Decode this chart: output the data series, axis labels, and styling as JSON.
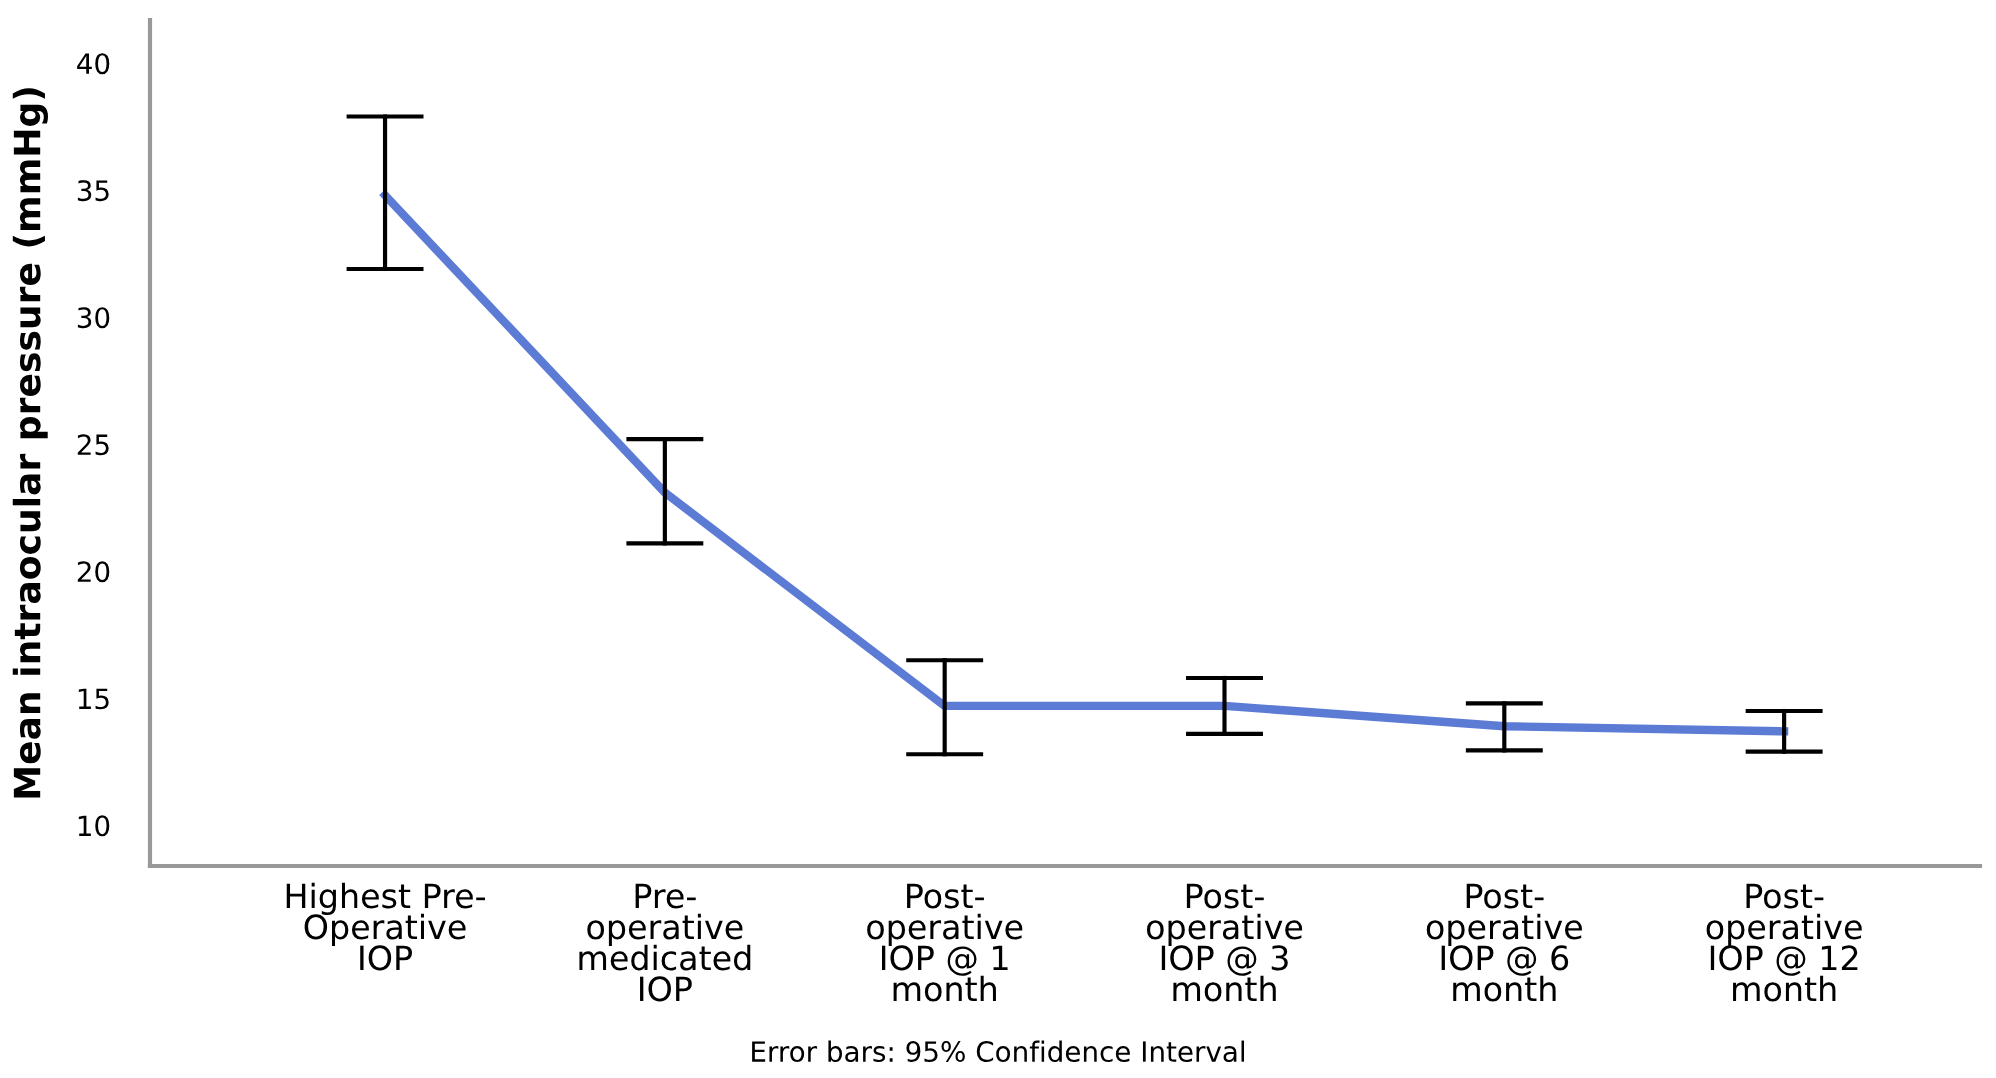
{
  "chart_data": {
    "type": "line",
    "ylabel": "Mean intraocular pressure (mmHg)",
    "categories": [
      "Highest Pre-\nOperative\nIOP",
      "Pre-\noperative\nmedicated\nIOP",
      "Post-\noperative\nIOP @ 1\nmonth",
      "Post-\noperative\nIOP @ 3\nmonth",
      "Post-\noperative\nIOP @ 6\nmonth",
      "Post-\noperative\nIOP @ 12\nmonth"
    ],
    "color": "#5b7bd5",
    "values": [
      34.8,
      23.1,
      14.7,
      14.7,
      13.9,
      13.7
    ],
    "errors": [
      [
        31.9,
        37.9
      ],
      [
        21.1,
        25.2
      ],
      [
        12.8,
        16.5
      ],
      [
        13.6,
        15.8
      ],
      [
        12.95,
        14.8
      ],
      [
        12.9,
        14.5
      ]
    ],
    "ylim": [
      8.4,
      41.7
    ],
    "yticks": [
      10,
      15,
      20,
      25,
      30,
      35,
      40
    ],
    "grid": false,
    "marker": "none",
    "line_style": "solid",
    "annotations": [
      "Error bars: 95% Confidence Interval"
    ]
  }
}
